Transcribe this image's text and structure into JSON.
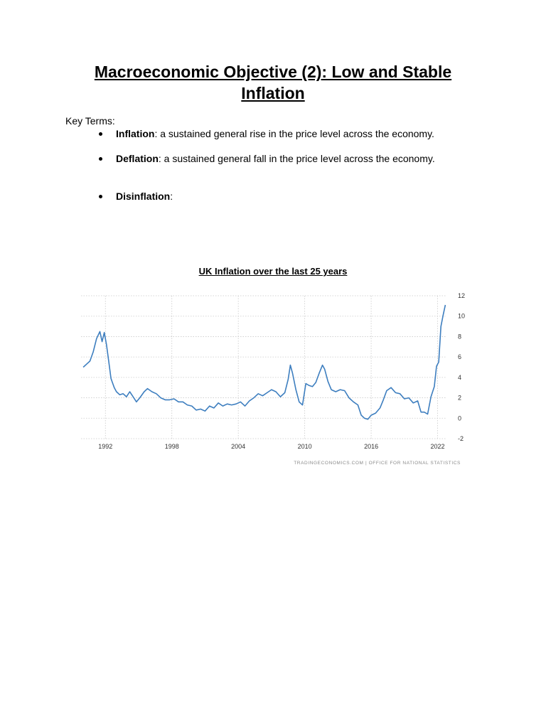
{
  "page": {
    "title": "Macroeconomic Objective (2): Low and Stable Inflation",
    "key_terms_label": "Key Terms:",
    "terms": [
      {
        "term": "Inflation",
        "definition": ": a sustained general rise in the price level across the economy."
      },
      {
        "term": "Deflation",
        "definition": ": a sustained general fall in the price level across the economy."
      },
      {
        "term": "Disinflation",
        "definition": ":"
      }
    ]
  },
  "chart_title": "UK Inflation over the last 25 years",
  "chart_data": {
    "type": "line",
    "title": "UK Inflation over the last 25 years",
    "xlabel": "",
    "ylabel": "",
    "x_ticks": [
      "1992",
      "1998",
      "2004",
      "2010",
      "2016",
      "2022"
    ],
    "y_ticks": [
      12,
      10,
      8,
      6,
      4,
      2,
      0,
      -2
    ],
    "ylim": [
      -2,
      12
    ],
    "xlim": [
      1989.8,
      2022.8
    ],
    "grid": true,
    "line_color": "#3d7ebf",
    "source": "TRADINGECONOMICS.COM  |  OFFICE FOR NATIONAL STATISTICS",
    "series": [
      {
        "x": [
          1990.0,
          1990.3,
          1990.6,
          1990.9,
          1991.2,
          1991.5,
          1991.7,
          1991.9,
          1992.1,
          1992.3,
          1992.5,
          1992.6,
          1992.8,
          1993.0,
          1993.3,
          1993.6,
          1993.9,
          1994.2,
          1994.5,
          1994.8,
          1995.1,
          1995.5,
          1995.8,
          1996.2,
          1996.6,
          1997.0,
          1997.4,
          1997.8,
          1998.2,
          1998.6,
          1999.0,
          1999.4,
          1999.8,
          2000.2,
          2000.6,
          2001.0,
          2001.4,
          2001.8,
          2002.2,
          2002.6,
          2003.0,
          2003.4,
          2003.8,
          2004.2,
          2004.6,
          2005.0,
          2005.4,
          2005.8,
          2006.2,
          2006.6,
          2007.0,
          2007.4,
          2007.8,
          2008.2,
          2008.5,
          2008.7,
          2008.9,
          2009.2,
          2009.5,
          2009.8,
          2010.1,
          2010.4,
          2010.7,
          2011.0,
          2011.3,
          2011.6,
          2011.8,
          2012.1,
          2012.4,
          2012.8,
          2013.2,
          2013.6,
          2014.0,
          2014.4,
          2014.8,
          2015.1,
          2015.4,
          2015.7,
          2016.0,
          2016.4,
          2016.8,
          2017.1,
          2017.4,
          2017.8,
          2018.2,
          2018.6,
          2019.0,
          2019.4,
          2019.8,
          2020.2,
          2020.5,
          2020.8,
          2021.1,
          2021.4,
          2021.7,
          2021.9,
          2022.1,
          2022.3,
          2022.5,
          2022.7
        ],
        "values": [
          5.0,
          5.3,
          5.6,
          6.5,
          7.8,
          8.5,
          7.5,
          8.4,
          7.2,
          5.6,
          3.9,
          3.6,
          3.0,
          2.6,
          2.3,
          2.4,
          2.1,
          2.6,
          2.1,
          1.6,
          2.0,
          2.6,
          2.9,
          2.6,
          2.4,
          2.0,
          1.8,
          1.8,
          1.9,
          1.6,
          1.6,
          1.3,
          1.2,
          0.8,
          0.9,
          0.7,
          1.2,
          1.0,
          1.5,
          1.2,
          1.4,
          1.3,
          1.4,
          1.6,
          1.2,
          1.7,
          2.0,
          2.4,
          2.2,
          2.5,
          2.8,
          2.6,
          2.1,
          2.5,
          3.8,
          5.2,
          4.4,
          2.8,
          1.6,
          1.3,
          3.4,
          3.2,
          3.1,
          3.5,
          4.4,
          5.2,
          4.8,
          3.6,
          2.8,
          2.6,
          2.8,
          2.7,
          2.0,
          1.6,
          1.3,
          0.3,
          0.0,
          -0.1,
          0.3,
          0.5,
          1.0,
          1.8,
          2.7,
          3.0,
          2.5,
          2.4,
          1.9,
          2.0,
          1.5,
          1.7,
          0.6,
          0.6,
          0.4,
          2.1,
          3.1,
          5.1,
          5.5,
          9.0,
          10.1,
          11.1
        ]
      }
    ]
  }
}
